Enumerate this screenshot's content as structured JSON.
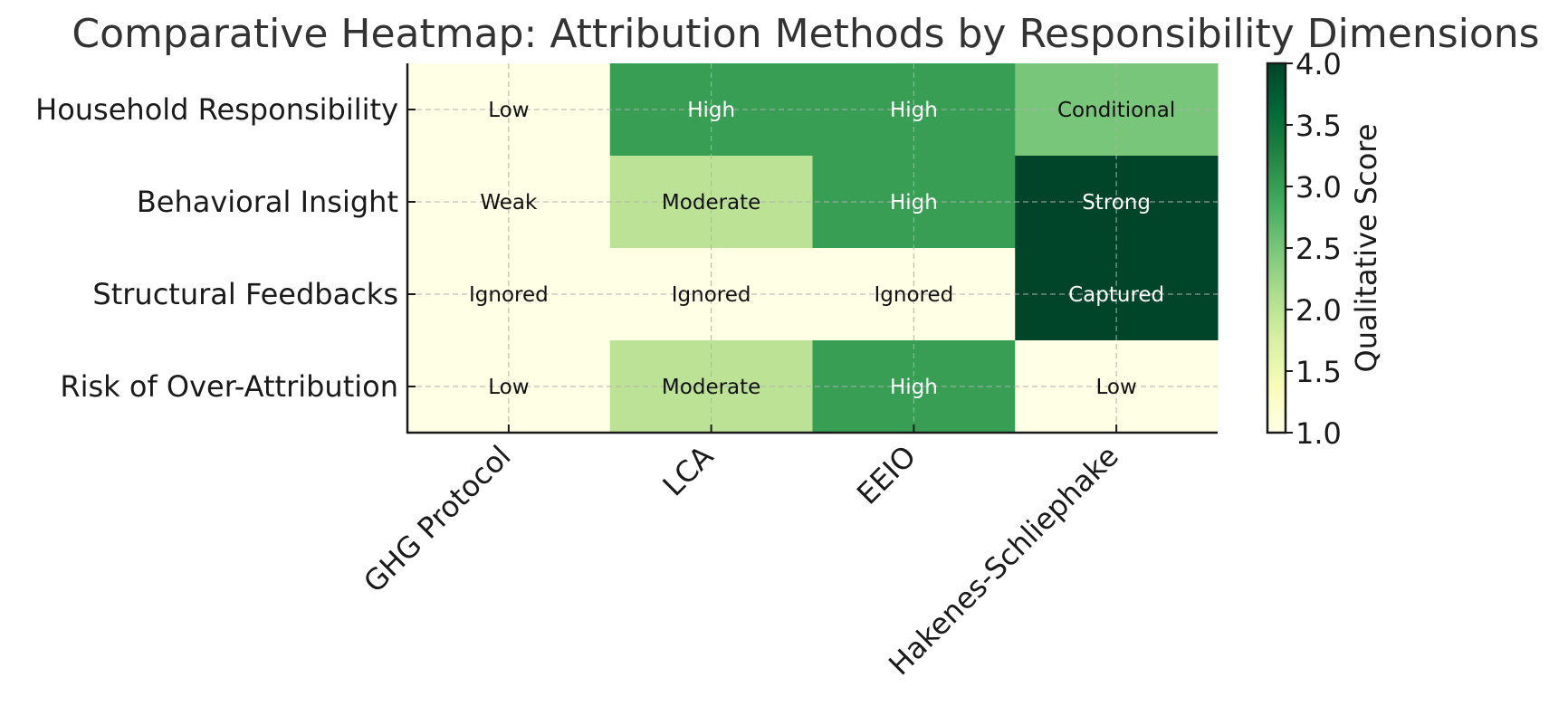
{
  "chart_data": {
    "type": "heatmap",
    "title": "Comparative Heatmap: Attribution Methods by Responsibility Dimensions",
    "x_categories": [
      "GHG Protocol",
      "LCA",
      "EEIO",
      "Hakenes-Schliephake"
    ],
    "y_categories": [
      "Household Responsibility",
      "Behavioral Insight",
      "Structural Feedbacks",
      "Risk of Over-Attribution"
    ],
    "values": [
      [
        1,
        3,
        3,
        2.5
      ],
      [
        1,
        2,
        3,
        4
      ],
      [
        1,
        1,
        1,
        4
      ],
      [
        1,
        2,
        3,
        1
      ]
    ],
    "labels": [
      [
        "Low",
        "High",
        "High",
        "Conditional"
      ],
      [
        "Weak",
        "Moderate",
        "High",
        "Strong"
      ],
      [
        "Ignored",
        "Ignored",
        "Ignored",
        "Captured"
      ],
      [
        "Low",
        "Moderate",
        "High",
        "Low"
      ]
    ],
    "colorbar": {
      "label": "Qualitative Score",
      "range": [
        1.0,
        4.0
      ],
      "ticks": [
        "1.0",
        "1.5",
        "2.0",
        "2.5",
        "3.0",
        "3.5",
        "4.0"
      ]
    },
    "colormap": "Greens",
    "grid": true
  }
}
